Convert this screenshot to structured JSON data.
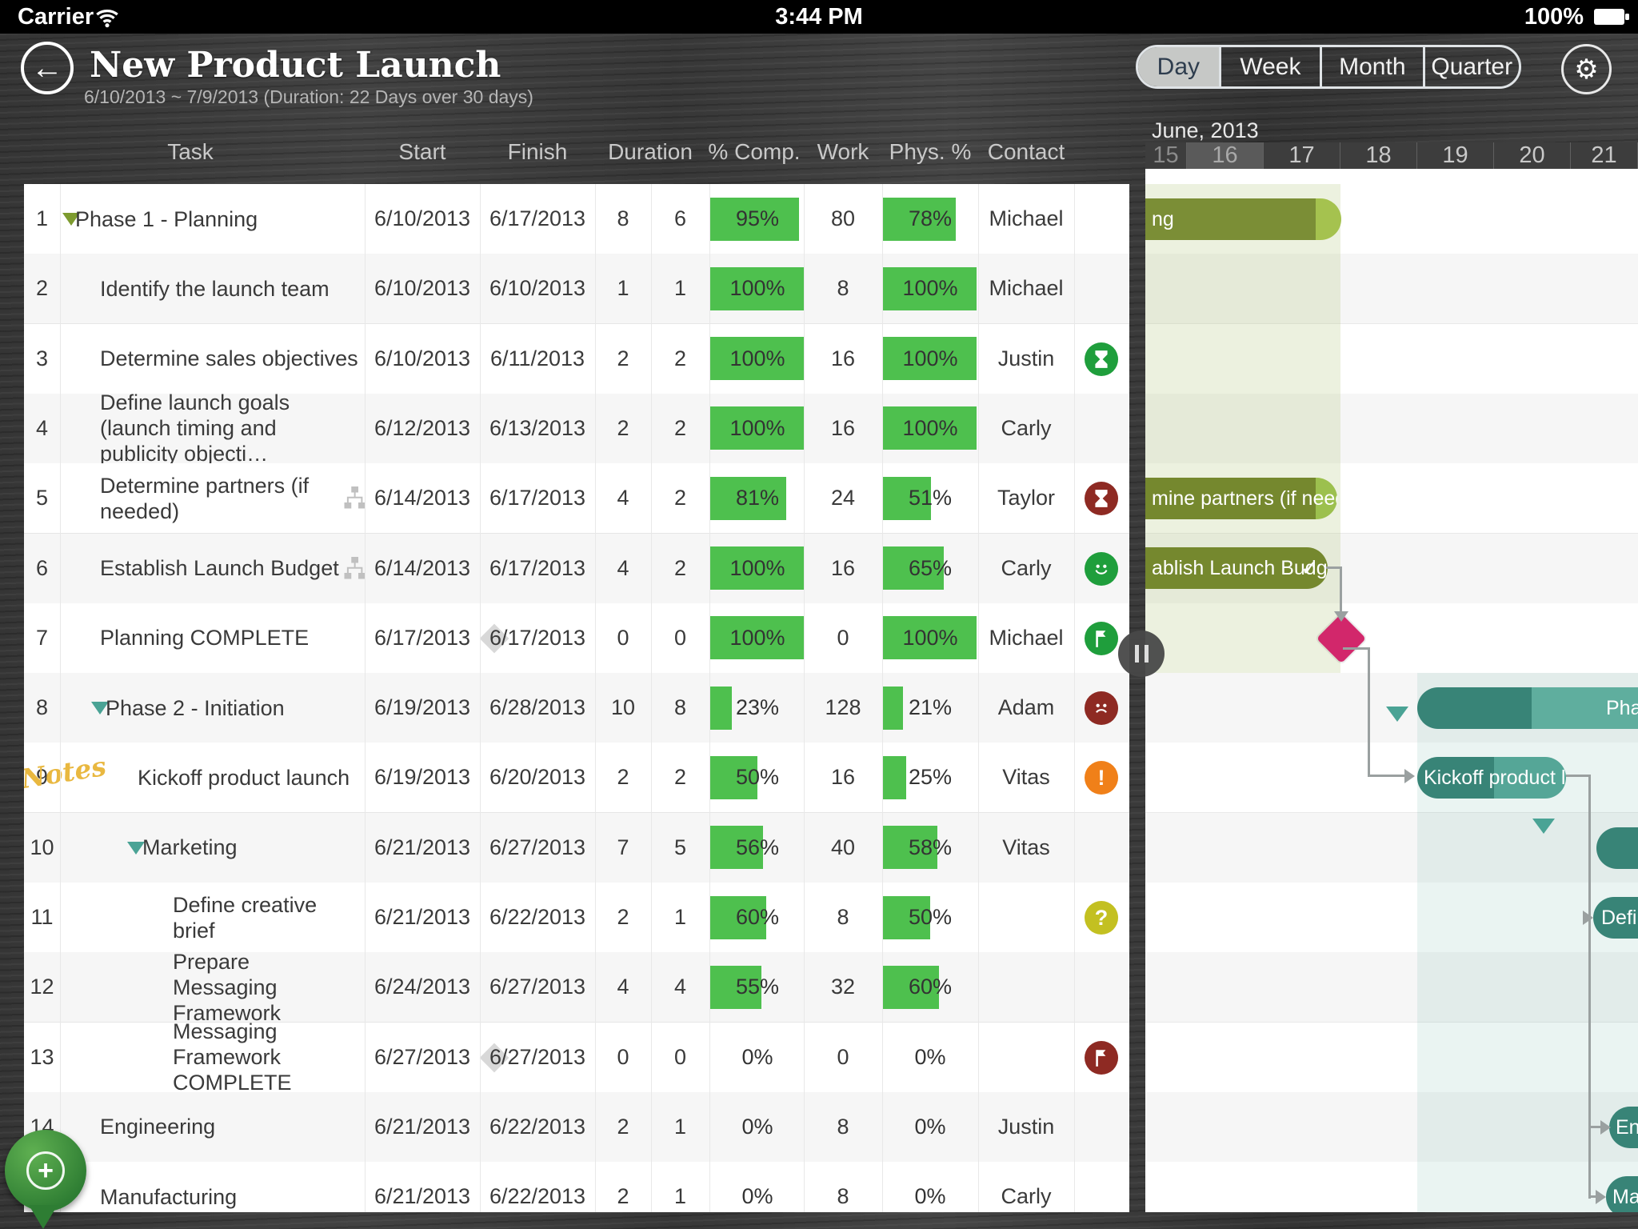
{
  "status_bar": {
    "carrier": "Carrier",
    "time": "3:44 PM",
    "battery_percent": "100%"
  },
  "header": {
    "title": "New Product Launch",
    "subtitle": "6/10/2013 ~ 7/9/2013 (Duration: 22 Days over 30 days)",
    "view_options": [
      "Day",
      "Week",
      "Month",
      "Quarter"
    ],
    "selected_view": "Day",
    "back_glyph": "←",
    "gear_glyph": "⚙"
  },
  "timeline": {
    "month_label": "June, 2013",
    "days": [
      "15",
      "16",
      "17",
      "18",
      "19",
      "20",
      "21"
    ],
    "dimmed_day": "15",
    "highlighted_day": "16"
  },
  "table": {
    "columns": [
      "Task",
      "Start",
      "Finish",
      "Duration",
      "% Comp.",
      "Work",
      "Phys. %",
      "Contact"
    ],
    "rows": [
      {
        "num": "1",
        "task": "Phase 1 - Planning",
        "start": "6/10/2013",
        "finish": "6/17/2013",
        "duration": "8",
        "duration2": "6",
        "pct_complete": 95,
        "work": "80",
        "phys_pct": 78,
        "contact": "Michael",
        "status_icon": "",
        "level": "phase1",
        "triangle": "olive"
      },
      {
        "num": "2",
        "task": "Identify the launch team",
        "start": "6/10/2013",
        "finish": "6/10/2013",
        "duration": "1",
        "duration2": "1",
        "pct_complete": 100,
        "work": "8",
        "phys_pct": 100,
        "contact": "Michael",
        "status_icon": "",
        "level": "child1"
      },
      {
        "num": "3",
        "task": "Determine sales objectives",
        "start": "6/10/2013",
        "finish": "6/11/2013",
        "duration": "2",
        "duration2": "2",
        "pct_complete": 100,
        "work": "16",
        "phys_pct": 100,
        "contact": "Justin",
        "status_icon": "hourglass-green",
        "level": "child1"
      },
      {
        "num": "4",
        "task": "Define launch goals (launch timing and publicity objecti…",
        "start": "6/12/2013",
        "finish": "6/13/2013",
        "duration": "2",
        "duration2": "2",
        "pct_complete": 100,
        "work": "16",
        "phys_pct": 100,
        "contact": "Carly",
        "status_icon": "",
        "level": "child1"
      },
      {
        "num": "5",
        "task": "Determine partners (if needed)",
        "start": "6/14/2013",
        "finish": "6/17/2013",
        "duration": "4",
        "duration2": "2",
        "pct_complete": 81,
        "work": "24",
        "phys_pct": 51,
        "contact": "Taylor",
        "status_icon": "hourglass-red",
        "level": "child1",
        "org_icon": true
      },
      {
        "num": "6",
        "task": "Establish Launch Budget",
        "start": "6/14/2013",
        "finish": "6/17/2013",
        "duration": "4",
        "duration2": "2",
        "pct_complete": 100,
        "work": "16",
        "phys_pct": 65,
        "contact": "Carly",
        "status_icon": "smile-green",
        "level": "child1",
        "org_icon": true
      },
      {
        "num": "7",
        "task": "Planning COMPLETE",
        "start": "6/17/2013",
        "finish": "6/17/2013",
        "duration": "0",
        "duration2": "0",
        "pct_complete": 100,
        "work": "0",
        "phys_pct": 100,
        "contact": "Michael",
        "status_icon": "flag-green",
        "level": "child1",
        "milestone": true
      },
      {
        "num": "8",
        "task": "Phase 2 - Initiation",
        "start": "6/19/2013",
        "finish": "6/28/2013",
        "duration": "10",
        "duration2": "8",
        "pct_complete": 23,
        "work": "128",
        "phys_pct": 21,
        "contact": "Adam",
        "status_icon": "frown-red",
        "level": "phase2",
        "triangle": "teal"
      },
      {
        "num": "9",
        "task": "Kickoff product launch",
        "start": "6/19/2013",
        "finish": "6/20/2013",
        "duration": "2",
        "duration2": "2",
        "pct_complete": 50,
        "work": "16",
        "phys_pct": 25,
        "contact": "Vitas",
        "status_icon": "exclaim-orange",
        "level": "p2child",
        "note": "Notes"
      },
      {
        "num": "10",
        "task": "Marketing",
        "start": "6/21/2013",
        "finish": "6/27/2013",
        "duration": "7",
        "duration2": "5",
        "pct_complete": 56,
        "work": "40",
        "phys_pct": 58,
        "contact": "Vitas",
        "status_icon": "",
        "level": "mkt",
        "triangle": "teal"
      },
      {
        "num": "11",
        "task": "Define creative brief",
        "start": "6/21/2013",
        "finish": "6/22/2013",
        "duration": "2",
        "duration2": "1",
        "pct_complete": 60,
        "work": "8",
        "phys_pct": 50,
        "contact": "",
        "status_icon": "question-yellow",
        "level": "mktchild"
      },
      {
        "num": "12",
        "task": "Prepare Messaging Framework",
        "start": "6/24/2013",
        "finish": "6/27/2013",
        "duration": "4",
        "duration2": "4",
        "pct_complete": 55,
        "work": "32",
        "phys_pct": 60,
        "contact": "",
        "status_icon": "",
        "level": "mktchild"
      },
      {
        "num": "13",
        "task": "Messaging Framework COMPLETE",
        "start": "6/27/2013",
        "finish": "6/27/2013",
        "duration": "0",
        "duration2": "0",
        "pct_complete": 0,
        "work": "0",
        "phys_pct": 0,
        "contact": "",
        "status_icon": "flag-red",
        "level": "mktchild",
        "milestone": true
      },
      {
        "num": "14",
        "task": "Engineering",
        "start": "6/21/2013",
        "finish": "6/22/2013",
        "duration": "2",
        "duration2": "1",
        "pct_complete": 0,
        "work": "8",
        "phys_pct": 0,
        "contact": "Justin",
        "status_icon": "",
        "level": "child1"
      },
      {
        "num": "15",
        "task": "Manufacturing",
        "start": "6/21/2013",
        "finish": "6/22/2013",
        "duration": "2",
        "duration2": "1",
        "pct_complete": 0,
        "work": "8",
        "phys_pct": 0,
        "contact": "Carly",
        "status_icon": "",
        "level": "child1"
      }
    ]
  },
  "gantt": {
    "bar_labels": {
      "1": "ng",
      "5": "mine partners (if needed)",
      "6": "ablish Launch Budget",
      "8": "Pha",
      "9": "Kickoff product la…",
      "11": "Define",
      "14": "En",
      "15": "Ma"
    },
    "checkmark": "✓"
  },
  "fab": {
    "plus_glyph": "+"
  },
  "colors": {
    "progress_green": "#4ec04e",
    "olive_dark": "#75882e",
    "olive_light": "#a5c24f",
    "teal_dark": "#388477",
    "teal_light": "#5fae9e",
    "milestone_pink": "#d2276b",
    "icon_green": "#1f9e3c",
    "icon_red": "#8e2a23",
    "icon_orange": "#f08019",
    "icon_yellow": "#c3c021"
  }
}
